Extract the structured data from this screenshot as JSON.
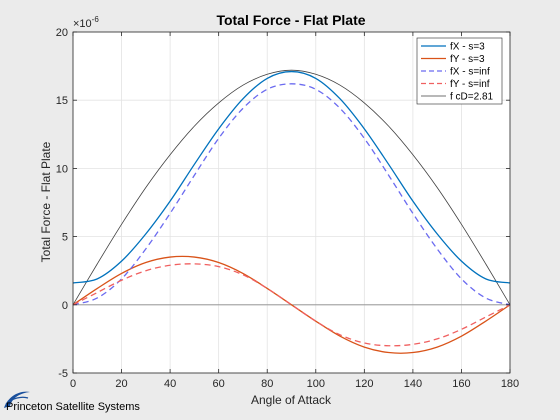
{
  "chart_data": {
    "type": "line",
    "title": "Total Force - Flat Plate",
    "xlabel": "Angle of Attack",
    "ylabel": "Total Force - Flat Plate",
    "y_exponent_label": "×10",
    "y_exponent_power": "-6",
    "xlim": [
      0,
      180
    ],
    "ylim": [
      -5,
      20
    ],
    "x_ticks": [
      "0",
      "20",
      "40",
      "60",
      "80",
      "100",
      "120",
      "140",
      "160",
      "180"
    ],
    "y_ticks": [
      "-5",
      "0",
      "5",
      "10",
      "15",
      "20"
    ],
    "grid": true,
    "legend_position": "top-right",
    "x": [
      0,
      10,
      20,
      30,
      40,
      50,
      60,
      70,
      80,
      90,
      100,
      110,
      120,
      130,
      140,
      150,
      160,
      170,
      180
    ],
    "series": [
      {
        "name": "fX - s=3",
        "color": "#0072bd",
        "style": "solid",
        "values": [
          1.6,
          1.9,
          3.2,
          5.2,
          7.6,
          10.3,
          12.9,
          15.1,
          16.6,
          17.1,
          16.6,
          15.1,
          12.9,
          10.3,
          7.6,
          5.2,
          3.2,
          1.9,
          1.6
        ]
      },
      {
        "name": "fY - s=3",
        "color": "#d95319",
        "style": "solid",
        "values": [
          0,
          1.2,
          2.3,
          3.1,
          3.5,
          3.5,
          3.1,
          2.3,
          1.2,
          0,
          -1.2,
          -2.3,
          -3.1,
          -3.5,
          -3.5,
          -3.1,
          -2.3,
          -1.2,
          0
        ]
      },
      {
        "name": "fX - s=inf",
        "color": "#6b6bf0",
        "style": "dashed",
        "values": [
          0,
          0.5,
          1.9,
          4.1,
          6.7,
          9.5,
          12.2,
          14.4,
          15.8,
          16.2,
          15.8,
          14.4,
          12.2,
          9.5,
          6.7,
          4.1,
          1.9,
          0.5,
          0
        ]
      },
      {
        "name": "fY - s=inf",
        "color": "#f06060",
        "style": "dashed",
        "values": [
          0,
          0.9,
          1.8,
          2.5,
          2.9,
          3.0,
          2.8,
          2.2,
          1.2,
          0,
          -1.2,
          -2.2,
          -2.8,
          -3.0,
          -2.9,
          -2.5,
          -1.8,
          -0.9,
          0
        ]
      },
      {
        "name": "f cD=2.81",
        "color": "#404040",
        "style": "solid",
        "values": [
          0,
          3.0,
          5.9,
          8.6,
          11.0,
          13.1,
          14.8,
          16.1,
          16.9,
          17.2,
          16.9,
          16.1,
          14.8,
          13.1,
          11.0,
          8.6,
          5.9,
          3.0,
          0
        ]
      }
    ]
  },
  "logo": {
    "text": "Princeton Satellite Systems"
  }
}
